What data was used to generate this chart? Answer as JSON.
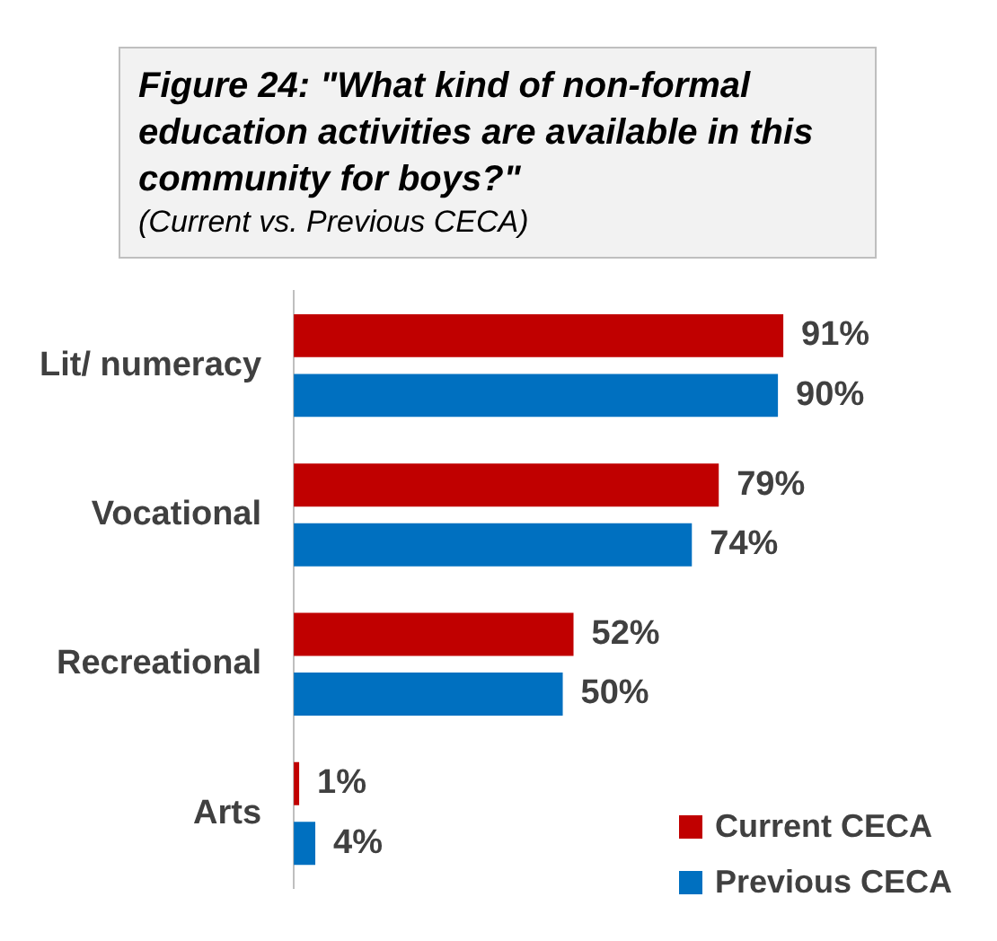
{
  "chart_data": {
    "type": "bar",
    "orientation": "horizontal",
    "title": "Figure 24: \"What kind of non-formal education activities are available in this community for boys?\"",
    "subtitle": "(Current vs. Previous CECA)",
    "categories": [
      "Lit/ numeracy",
      "Vocational",
      "Recreational",
      "Arts"
    ],
    "series": [
      {
        "name": "Current CECA",
        "color": "#c00000",
        "values": [
          91,
          79,
          52,
          1
        ],
        "value_labels": [
          "91%",
          "79%",
          "52%",
          "1%"
        ]
      },
      {
        "name": "Previous CECA",
        "color": "#0070c0",
        "values": [
          90,
          74,
          50,
          4
        ],
        "value_labels": [
          "90%",
          "74%",
          "50%",
          "4%"
        ]
      }
    ],
    "tick_labels": "y",
    "legend": "bottom right"
  }
}
